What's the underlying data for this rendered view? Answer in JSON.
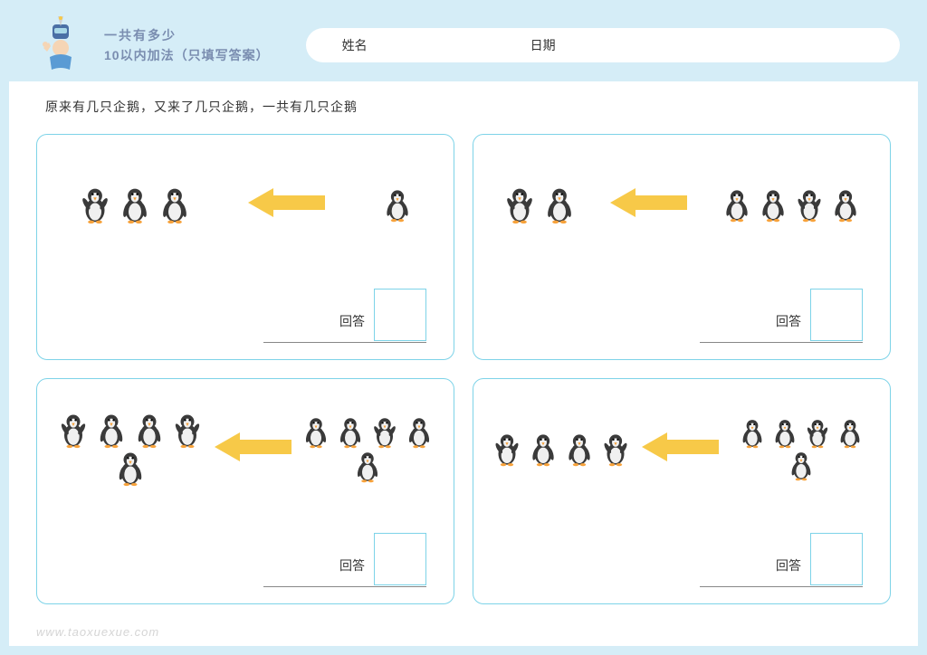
{
  "header": {
    "title_line1": "一共有多少",
    "title_line2": "10以内加法（只填写答案）",
    "name_label": "姓名",
    "date_label": "日期"
  },
  "instruction": "原来有几只企鹅，又来了几只企鹅，一共有几只企鹅",
  "answer_label": "回答",
  "watermark": "www.taoxuexue.com",
  "colors": {
    "page_bg": "#d5edf7",
    "card_border": "#7dd3e8",
    "arrow": "#f7c948",
    "title_text": "#7a8db0",
    "penguin_body": "#3a3a3a",
    "penguin_belly": "#f0f0f0",
    "penguin_beak": "#f7a23b"
  },
  "problems": [
    {
      "left_count": 3,
      "right_count": 1,
      "penguin_size": 42
    },
    {
      "left_count": 2,
      "right_count": 4,
      "penguin_size": 42
    },
    {
      "left_count": 5,
      "right_count": 5,
      "penguin_size": 40
    },
    {
      "left_count": 4,
      "right_count": 5,
      "penguin_size": 38
    }
  ]
}
